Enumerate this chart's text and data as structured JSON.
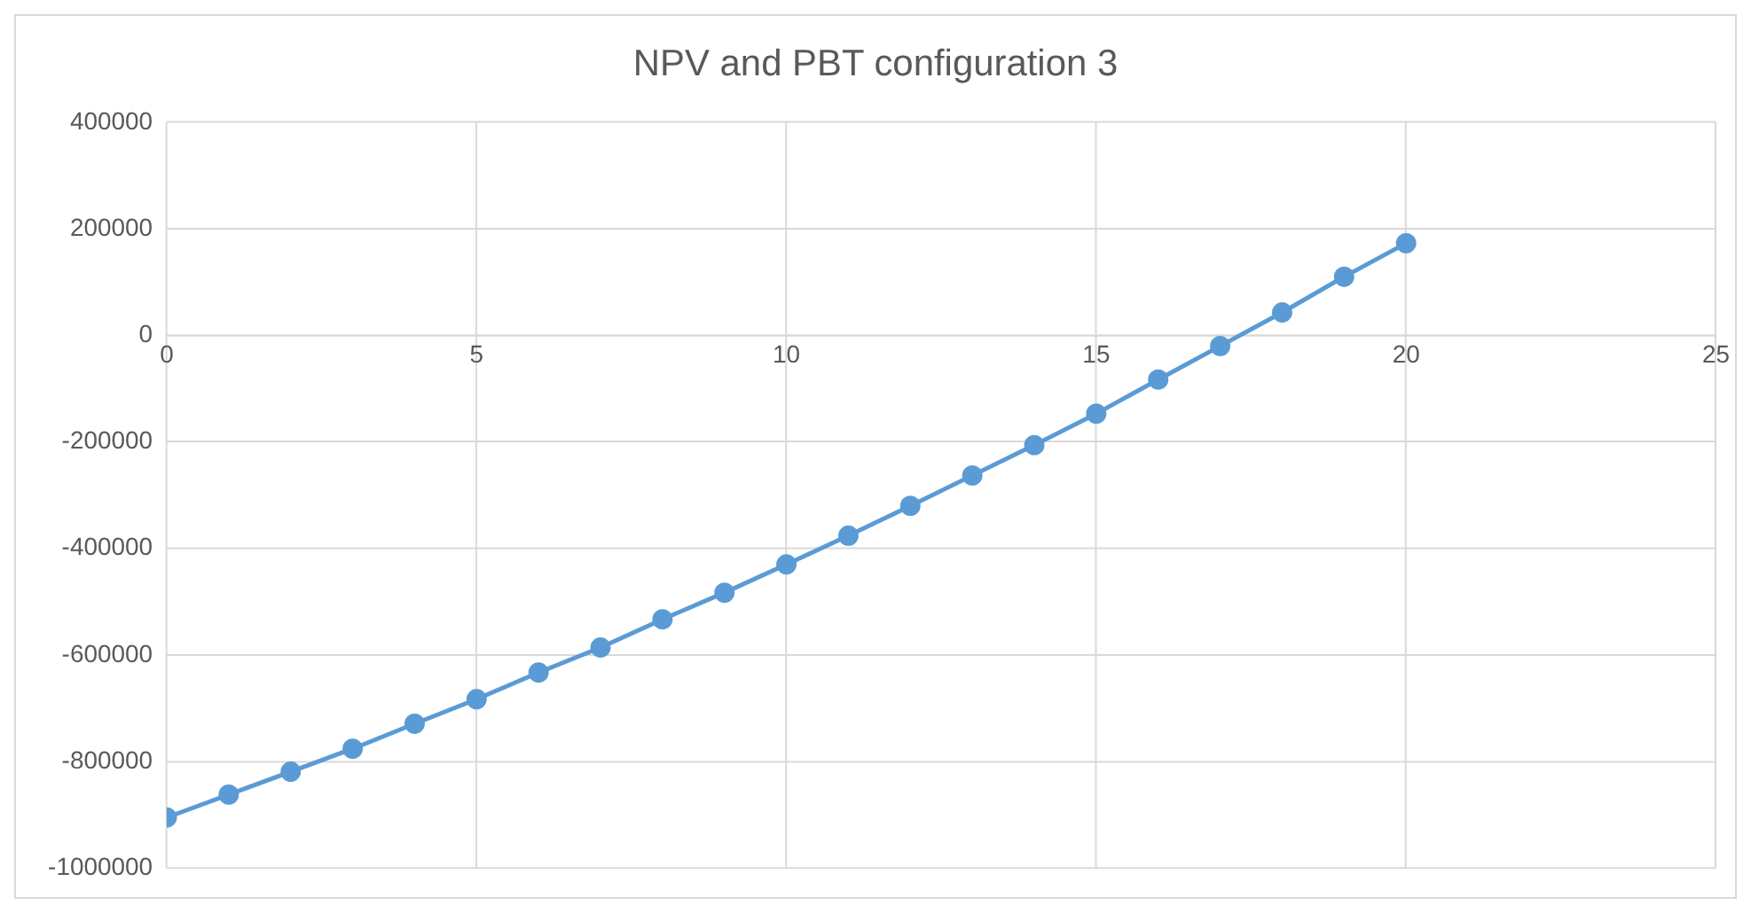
{
  "chart_data": {
    "type": "line",
    "title": "NPV and PBT configuration 3",
    "x": [
      0,
      1,
      2,
      3,
      4,
      5,
      6,
      7,
      8,
      9,
      10,
      11,
      12,
      13,
      14,
      15,
      16,
      17,
      18,
      19,
      20
    ],
    "series": [
      {
        "color": "#5b9bd5",
        "values": [
          -905000,
          -862000,
          -819000,
          -776000,
          -729000,
          -683000,
          -633000,
          -586000,
          -533000,
          -483000,
          -430000,
          -376000,
          -320000,
          -263000,
          -206000,
          -147000,
          -83000,
          -20000,
          43000,
          110000,
          173000
        ]
      }
    ],
    "xlim": [
      0,
      25
    ],
    "xticks": [
      0,
      5,
      10,
      15,
      20,
      25
    ],
    "ylim": [
      -1000000,
      400000
    ],
    "yticks": [
      -1000000,
      -800000,
      -600000,
      -400000,
      -200000,
      0,
      200000,
      400000
    ],
    "grid": true,
    "legend": false,
    "marker": "circle",
    "line_style": "solid"
  }
}
